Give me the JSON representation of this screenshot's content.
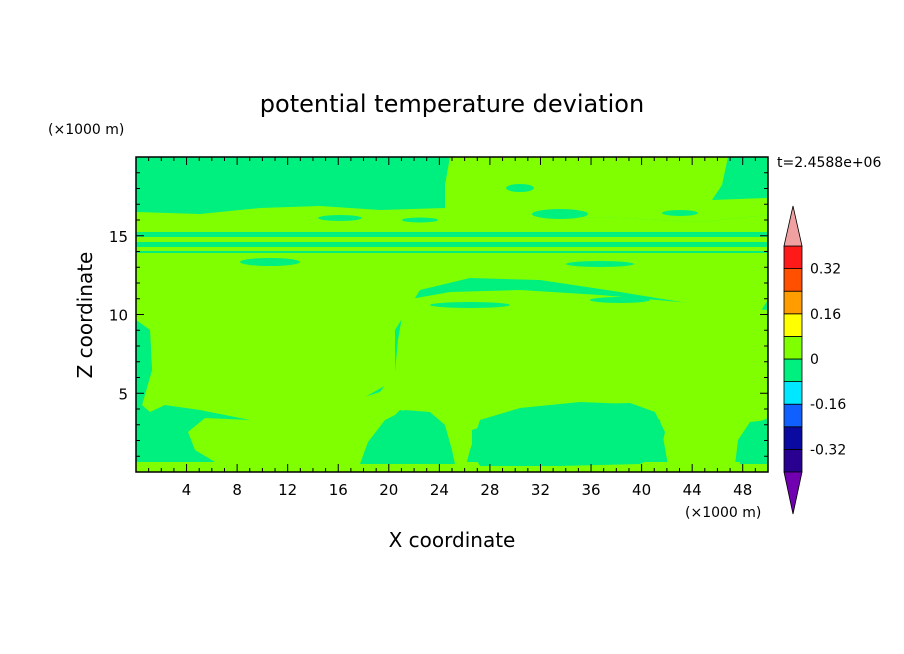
{
  "chart_data": {
    "type": "heatmap",
    "title": "potential temperature deviation",
    "xlabel": "X coordinate",
    "ylabel": "Z coordinate",
    "x_unit": "(×1000 m)",
    "y_unit": "(×1000 m)",
    "time_label": "t=2.4588e+06",
    "xlim": [
      0,
      50
    ],
    "ylim": [
      0,
      20
    ],
    "x_ticks": [
      "4",
      "8",
      "12",
      "16",
      "20",
      "24",
      "28",
      "32",
      "36",
      "40",
      "44",
      "48"
    ],
    "x_tick_values": [
      4,
      8,
      12,
      16,
      20,
      24,
      28,
      32,
      36,
      40,
      44,
      48
    ],
    "y_ticks": [
      "5",
      "10",
      "15"
    ],
    "y_tick_values": [
      5,
      10,
      15
    ],
    "colorbar": {
      "levels": [
        -0.4,
        -0.32,
        -0.24,
        -0.16,
        -0.08,
        0,
        0.08,
        0.16,
        0.24,
        0.32,
        0.4
      ],
      "labels": [
        "0.32",
        "0.16",
        "0",
        "-0.16",
        "-0.32"
      ],
      "label_values": [
        0.32,
        0.16,
        0,
        -0.16,
        -0.32
      ],
      "colors": [
        "#2a0090",
        "#0a0aa0",
        "#1060ff",
        "#00e8ff",
        "#00f080",
        "#80ff00",
        "#ffff00",
        "#ff9c00",
        "#ff5000",
        "#ff1a1a"
      ],
      "over_color": "#f0a0a0",
      "under_color": "#7000b0"
    },
    "fields": {
      "negative_color": "#00f080",
      "positive_color": "#80ff00"
    }
  }
}
